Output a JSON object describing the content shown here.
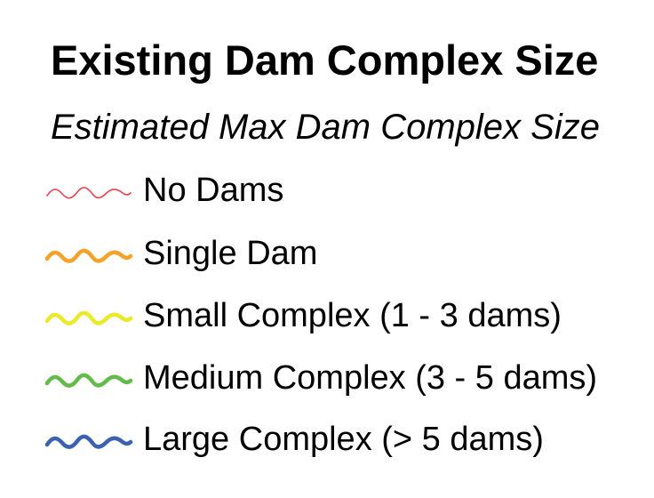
{
  "legend": {
    "title": "Existing Dam Complex Size",
    "subtitle": "Estimated Max Dam Complex Size",
    "items": [
      {
        "label": "No Dams",
        "color": "#e8414f",
        "icon": "thin-wavy-line-icon"
      },
      {
        "label": "Single Dam",
        "color": "#f5a22a",
        "icon": "wavy-line-icon"
      },
      {
        "label": "Small Complex (1 - 3 dams)",
        "color": "#eaea2a",
        "icon": "wavy-line-icon"
      },
      {
        "label": "Medium Complex (3 - 5 dams)",
        "color": "#62bb4a",
        "icon": "wavy-line-icon"
      },
      {
        "label": "Large Complex (> 5 dams)",
        "color": "#3a62b0",
        "icon": "wavy-line-icon"
      }
    ]
  }
}
